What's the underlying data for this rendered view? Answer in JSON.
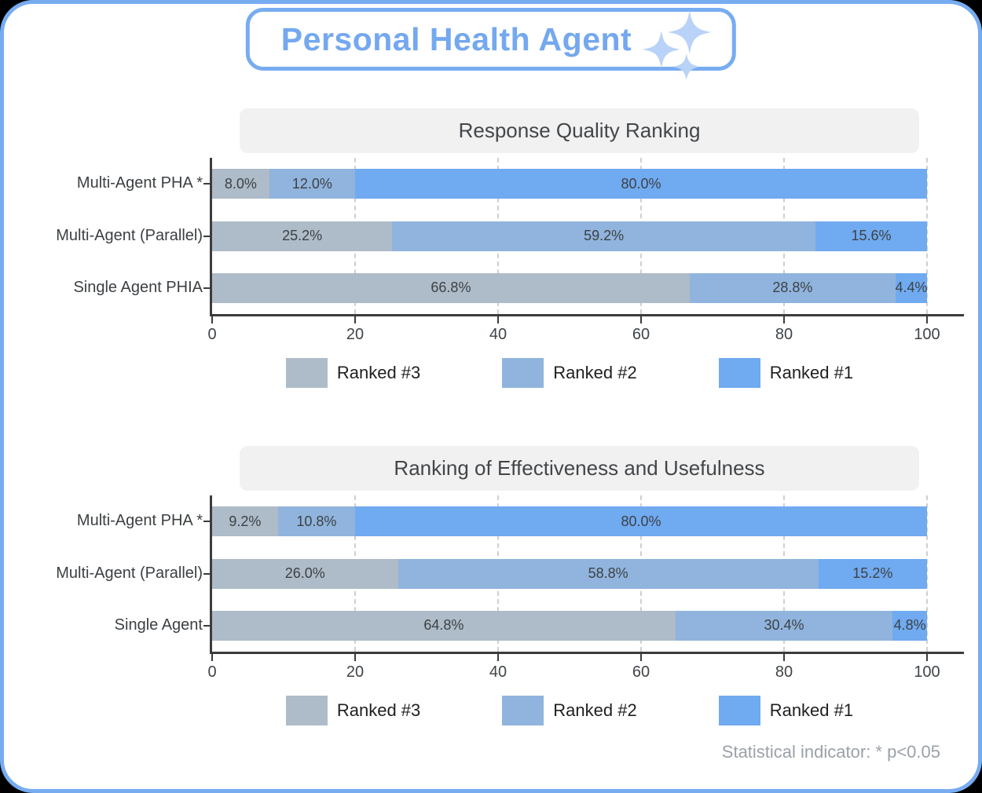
{
  "header": {
    "title": "Personal Health Agent",
    "icon": "sparkles-icon"
  },
  "colors": {
    "rank3": "#aebbc8",
    "rank2": "#90b4dd",
    "rank1": "#70aaf0",
    "border": "#77acf1",
    "badge_text": "#74a8ef",
    "sparkle": "#b9d2f7",
    "banner": "#f1f1f2",
    "title": "#434649",
    "axis": "#3c3c3c",
    "grid": "#cfcfcf",
    "tick": "#3f4448",
    "cat": "#3c4043",
    "seglabel": "#3d4245",
    "legend": "#1f1f1f",
    "note": "#9ba1a8"
  },
  "legend": {
    "items": [
      {
        "label": "Ranked #3",
        "color": "#aebbc8"
      },
      {
        "label": "Ranked #2",
        "color": "#90b4dd"
      },
      {
        "label": "Ranked #1",
        "color": "#70aaf0"
      }
    ]
  },
  "footnote": "Statistical indicator: * p<0.05",
  "chart_data": [
    {
      "type": "bar",
      "stacked": true,
      "orientation": "horizontal",
      "title": "Response Quality Ranking",
      "categories": [
        "Multi-Agent PHA *",
        "Multi-Agent (Parallel)",
        "Single Agent PHIA"
      ],
      "series": [
        {
          "name": "Ranked #3",
          "values": [
            8.0,
            25.2,
            66.8
          ]
        },
        {
          "name": "Ranked #2",
          "values": [
            12.0,
            59.2,
            28.8
          ]
        },
        {
          "name": "Ranked #1",
          "values": [
            80.0,
            15.6,
            4.4
          ]
        }
      ],
      "value_suffix": "%",
      "xlim": [
        0,
        100
      ],
      "xticks": [
        0,
        20,
        40,
        60,
        80,
        100
      ],
      "grid": "dashed-vertical",
      "legend_position": "bottom"
    },
    {
      "type": "bar",
      "stacked": true,
      "orientation": "horizontal",
      "title": "Ranking of Effectiveness and Usefulness",
      "categories": [
        "Multi-Agent PHA *",
        "Multi-Agent (Parallel)",
        "Single Agent"
      ],
      "series": [
        {
          "name": "Ranked #3",
          "values": [
            9.2,
            26.0,
            64.8
          ]
        },
        {
          "name": "Ranked #2",
          "values": [
            10.8,
            58.8,
            30.4
          ]
        },
        {
          "name": "Ranked #1",
          "values": [
            80.0,
            15.2,
            4.8
          ]
        }
      ],
      "value_suffix": "%",
      "xlim": [
        0,
        100
      ],
      "xticks": [
        0,
        20,
        40,
        60,
        80,
        100
      ],
      "grid": "dashed-vertical",
      "legend_position": "bottom"
    }
  ]
}
